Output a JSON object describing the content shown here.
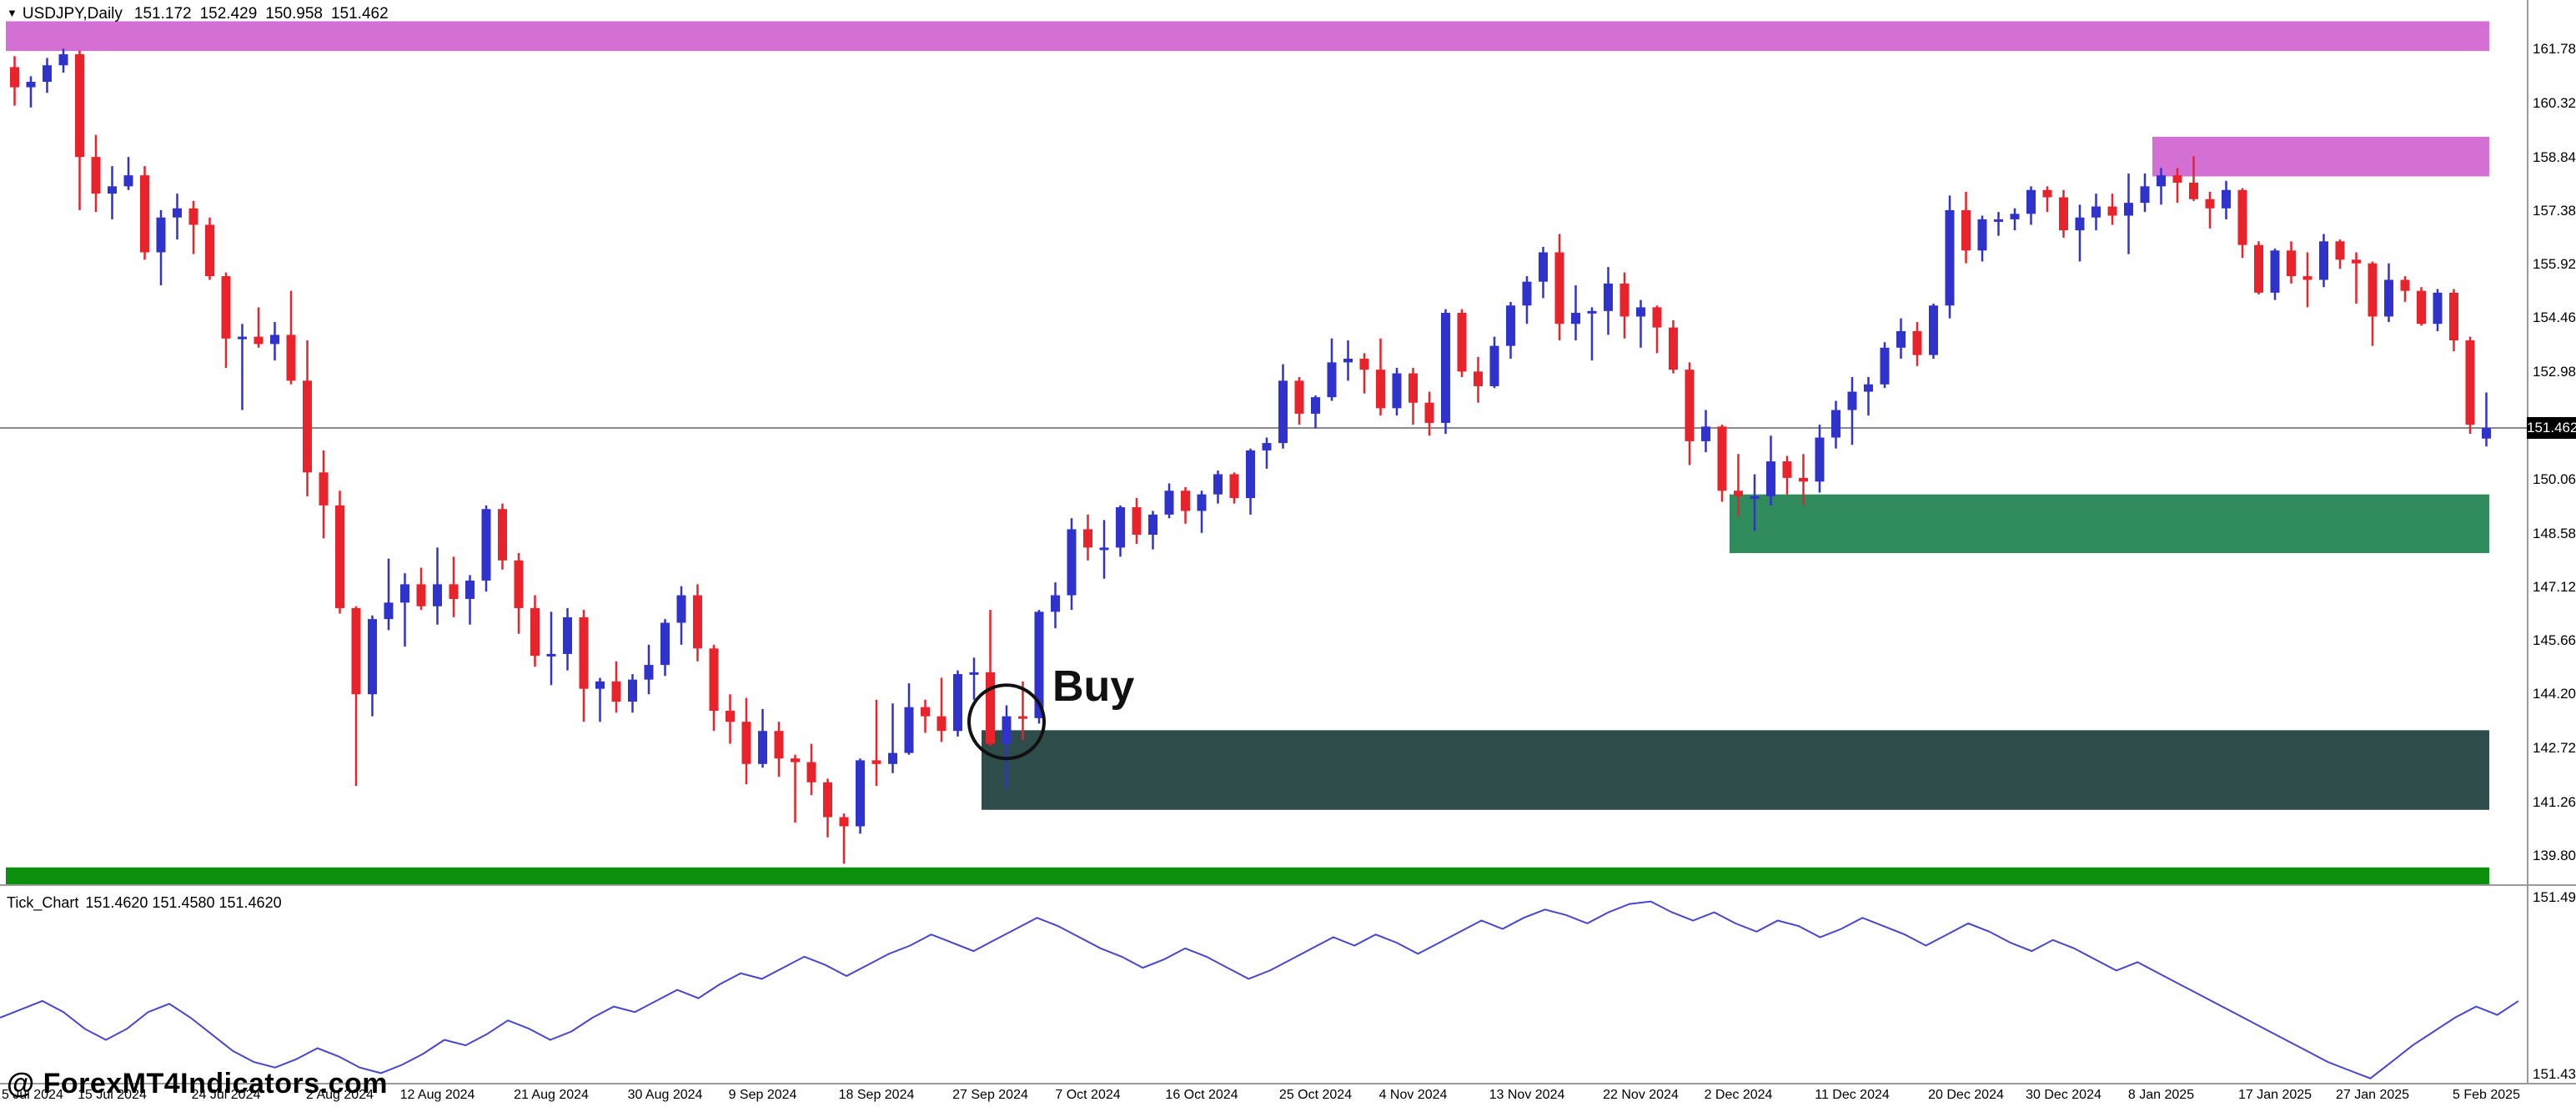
{
  "header": {
    "arrow": "▼",
    "instrument": "USDJPY,Daily",
    "open": "151.172",
    "high": "152.429",
    "low": "150.958",
    "close": "151.462"
  },
  "watermark": "@ ForexMT4Indicators.com",
  "price_axis": {
    "labels": [
      "161.780",
      "160.320",
      "158.840",
      "157.380",
      "155.920",
      "154.460",
      "152.980",
      "150.060",
      "148.580",
      "147.120",
      "145.660",
      "144.200",
      "142.720",
      "141.260",
      "139.800"
    ],
    "current_price": "151.462"
  },
  "indicator": {
    "name": "Tick_Chart",
    "values_line": "151.4620 151.4580 151.4620",
    "axis_top": "151.4979",
    "axis_bottom": "151.4341"
  },
  "time_axis": {
    "labels": [
      "5 Jul 2024",
      "15 Jul 2024",
      "24 Jul 2024",
      "2 Aug 2024",
      "12 Aug 2024",
      "21 Aug 2024",
      "30 Aug 2024",
      "9 Sep 2024",
      "18 Sep 2024",
      "27 Sep 2024",
      "7 Oct 2024",
      "16 Oct 2024",
      "25 Oct 2024",
      "4 Nov 2024",
      "13 Nov 2024",
      "22 Nov 2024",
      "2 Dec 2024",
      "11 Dec 2024",
      "20 Dec 2024",
      "30 Dec 2024",
      "8 Jan 2025",
      "17 Jan 2025",
      "27 Jan 2025",
      "5 Feb 2025"
    ],
    "indices": [
      0,
      6,
      13,
      20,
      26,
      33,
      40,
      46,
      53,
      60,
      66,
      73,
      80,
      86,
      93,
      100,
      106,
      113,
      120,
      126,
      132,
      139,
      145,
      152
    ]
  },
  "colors": {
    "bull": "#3032cc",
    "bear": "#e8232b",
    "zone_pink": "#d46fd4",
    "zone_green": "#318c5d",
    "zone_teal": "#2e4d4a",
    "zone_bright_green": "#0c8f0c",
    "indicator_line": "#4646cf",
    "price_line": "#8a8a8a",
    "annotation": "#111111"
  },
  "chart_data": [
    {
      "type": "candlestick",
      "title": "USDJPY Daily",
      "ylim": [
        139.02,
        163.13
      ],
      "current_price": 151.462,
      "annotation": {
        "text": "Buy",
        "candle_index": 61,
        "price": 143.45
      },
      "zones": [
        {
          "name": "supply-zone-upper",
          "color": "zone_pink",
          "top": 162.55,
          "bottom": 161.74,
          "start_index": 0
        },
        {
          "name": "supply-zone-right",
          "color": "zone_pink",
          "top": 159.4,
          "bottom": 158.32,
          "start_index": 132
        },
        {
          "name": "demand-zone-green",
          "color": "zone_green",
          "top": 149.65,
          "bottom": 148.05,
          "start_index": 106
        },
        {
          "name": "demand-zone-teal",
          "color": "zone_teal",
          "top": 143.22,
          "bottom": 141.05,
          "start_index": 60
        },
        {
          "name": "support-band-bottom",
          "color": "zone_bright_green",
          "top": 139.48,
          "bottom": 138.9,
          "start_index": 0
        }
      ],
      "ohlc": [
        [
          161.3,
          161.6,
          160.25,
          160.75
        ],
        [
          160.75,
          161.05,
          160.2,
          160.9
        ],
        [
          160.9,
          161.55,
          160.6,
          161.35
        ],
        [
          161.35,
          161.8,
          161.15,
          161.65
        ],
        [
          161.65,
          161.75,
          157.4,
          158.85
        ],
        [
          158.85,
          159.45,
          157.35,
          157.85
        ],
        [
          157.85,
          158.6,
          157.15,
          158.05
        ],
        [
          158.05,
          158.85,
          157.95,
          158.35
        ],
        [
          158.35,
          158.6,
          156.05,
          156.25
        ],
        [
          156.25,
          157.4,
          155.35,
          157.2
        ],
        [
          157.2,
          157.85,
          156.6,
          157.45
        ],
        [
          157.45,
          157.65,
          156.2,
          157.0
        ],
        [
          157.0,
          157.2,
          155.5,
          155.6
        ],
        [
          155.6,
          155.7,
          153.1,
          153.9
        ],
        [
          153.9,
          154.3,
          151.95,
          153.95
        ],
        [
          153.95,
          154.75,
          153.65,
          153.75
        ],
        [
          153.75,
          154.35,
          153.3,
          154.0
        ],
        [
          154.0,
          155.2,
          152.65,
          152.75
        ],
        [
          152.75,
          153.85,
          149.6,
          150.25
        ],
        [
          150.25,
          150.85,
          148.45,
          149.35
        ],
        [
          149.35,
          149.75,
          146.4,
          146.55
        ],
        [
          146.55,
          146.6,
          141.7,
          144.2
        ],
        [
          144.2,
          146.35,
          143.6,
          146.25
        ],
        [
          146.25,
          147.9,
          145.95,
          146.7
        ],
        [
          146.7,
          147.5,
          145.5,
          147.2
        ],
        [
          147.2,
          147.65,
          146.5,
          146.6
        ],
        [
          146.6,
          148.2,
          146.1,
          147.2
        ],
        [
          147.2,
          147.95,
          146.3,
          146.8
        ],
        [
          146.8,
          147.45,
          146.1,
          147.3
        ],
        [
          147.3,
          149.35,
          147.0,
          149.25
        ],
        [
          149.25,
          149.4,
          147.6,
          147.85
        ],
        [
          147.85,
          148.05,
          145.85,
          146.55
        ],
        [
          146.55,
          146.9,
          144.95,
          145.25
        ],
        [
          145.25,
          146.45,
          144.45,
          145.3
        ],
        [
          145.3,
          146.55,
          144.85,
          146.3
        ],
        [
          146.3,
          146.5,
          143.45,
          144.35
        ],
        [
          144.35,
          144.65,
          143.45,
          144.55
        ],
        [
          144.55,
          145.1,
          143.7,
          144.0
        ],
        [
          144.0,
          144.75,
          143.7,
          144.6
        ],
        [
          144.6,
          145.55,
          144.2,
          145.0
        ],
        [
          145.0,
          146.25,
          144.7,
          146.15
        ],
        [
          146.15,
          147.15,
          145.55,
          146.9
        ],
        [
          146.9,
          147.2,
          145.1,
          145.45
        ],
        [
          145.45,
          145.55,
          143.2,
          143.75
        ],
        [
          143.75,
          144.2,
          142.85,
          143.45
        ],
        [
          143.45,
          144.1,
          141.75,
          142.3
        ],
        [
          142.3,
          143.8,
          142.2,
          143.2
        ],
        [
          143.2,
          143.45,
          141.95,
          142.45
        ],
        [
          142.45,
          142.55,
          140.7,
          142.35
        ],
        [
          142.35,
          142.85,
          141.45,
          141.8
        ],
        [
          141.8,
          141.9,
          140.3,
          140.85
        ],
        [
          140.85,
          140.95,
          139.58,
          140.6
        ],
        [
          140.6,
          142.45,
          140.4,
          142.4
        ],
        [
          142.4,
          144.05,
          141.7,
          142.3
        ],
        [
          142.3,
          143.95,
          142.05,
          142.6
        ],
        [
          142.6,
          144.5,
          142.55,
          143.85
        ],
        [
          143.85,
          144.05,
          143.15,
          143.6
        ],
        [
          143.6,
          144.65,
          142.9,
          143.2
        ],
        [
          143.2,
          144.85,
          143.05,
          144.75
        ],
        [
          144.75,
          145.2,
          144.05,
          144.8
        ],
        [
          144.8,
          146.5,
          142.8,
          142.85
        ],
        [
          142.85,
          143.9,
          141.65,
          143.6
        ],
        [
          143.6,
          144.55,
          142.95,
          143.55
        ],
        [
          143.55,
          146.5,
          143.4,
          146.45
        ],
        [
          146.45,
          147.25,
          146.0,
          146.9
        ],
        [
          146.9,
          149.0,
          146.5,
          148.7
        ],
        [
          148.7,
          149.1,
          147.85,
          148.2
        ],
        [
          148.2,
          148.95,
          147.35,
          148.2
        ],
        [
          148.2,
          149.35,
          147.95,
          149.3
        ],
        [
          149.3,
          149.55,
          148.3,
          148.55
        ],
        [
          148.55,
          149.2,
          148.15,
          149.1
        ],
        [
          149.1,
          149.95,
          149.0,
          149.75
        ],
        [
          149.75,
          149.85,
          148.85,
          149.2
        ],
        [
          149.2,
          149.75,
          148.6,
          149.65
        ],
        [
          149.65,
          150.3,
          149.4,
          150.2
        ],
        [
          150.2,
          150.25,
          149.4,
          149.55
        ],
        [
          149.55,
          150.9,
          149.1,
          150.85
        ],
        [
          150.85,
          151.2,
          150.35,
          151.05
        ],
        [
          151.05,
          153.2,
          150.9,
          152.75
        ],
        [
          152.75,
          152.85,
          151.55,
          151.85
        ],
        [
          151.85,
          152.35,
          151.45,
          152.3
        ],
        [
          152.3,
          153.9,
          152.2,
          153.25
        ],
        [
          153.25,
          153.85,
          152.75,
          153.35
        ],
        [
          153.35,
          153.5,
          152.4,
          153.05
        ],
        [
          153.05,
          153.9,
          151.8,
          152.0
        ],
        [
          152.0,
          153.1,
          151.8,
          152.95
        ],
        [
          152.95,
          153.1,
          151.55,
          152.15
        ],
        [
          152.15,
          152.45,
          151.25,
          151.6
        ],
        [
          151.6,
          154.7,
          151.3,
          154.6
        ],
        [
          154.6,
          154.7,
          152.85,
          153.0
        ],
        [
          153.0,
          153.4,
          152.15,
          152.6
        ],
        [
          152.6,
          153.95,
          152.55,
          153.7
        ],
        [
          153.7,
          154.9,
          153.35,
          154.8
        ],
        [
          154.8,
          155.6,
          154.3,
          155.45
        ],
        [
          155.45,
          156.4,
          155.0,
          156.25
        ],
        [
          156.25,
          156.75,
          153.85,
          154.3
        ],
        [
          154.3,
          155.35,
          153.85,
          154.6
        ],
        [
          154.6,
          154.75,
          153.3,
          154.65
        ],
        [
          154.65,
          155.85,
          154.0,
          155.4
        ],
        [
          155.4,
          155.7,
          153.9,
          154.5
        ],
        [
          154.5,
          154.95,
          153.65,
          154.75
        ],
        [
          154.75,
          154.8,
          153.5,
          154.2
        ],
        [
          154.2,
          154.4,
          152.95,
          153.05
        ],
        [
          153.05,
          153.25,
          150.45,
          151.1
        ],
        [
          151.1,
          151.95,
          150.8,
          151.5
        ],
        [
          151.5,
          151.55,
          149.45,
          149.75
        ],
        [
          149.75,
          150.75,
          149.05,
          149.6
        ],
        [
          149.55,
          150.2,
          148.65,
          149.6
        ],
        [
          149.6,
          151.25,
          149.35,
          150.55
        ],
        [
          150.55,
          150.7,
          149.65,
          150.1
        ],
        [
          150.1,
          150.75,
          149.35,
          150.0
        ],
        [
          150.0,
          151.55,
          149.7,
          151.2
        ],
        [
          151.2,
          152.2,
          150.9,
          151.95
        ],
        [
          151.95,
          152.85,
          151.0,
          152.45
        ],
        [
          152.45,
          152.85,
          151.8,
          152.65
        ],
        [
          152.65,
          153.8,
          152.55,
          153.65
        ],
        [
          153.65,
          154.45,
          153.35,
          154.1
        ],
        [
          154.1,
          154.35,
          153.15,
          153.45
        ],
        [
          153.45,
          154.85,
          153.35,
          154.8
        ],
        [
          154.8,
          157.8,
          154.45,
          157.4
        ],
        [
          157.4,
          157.9,
          155.95,
          156.3
        ],
        [
          156.3,
          157.25,
          156.0,
          157.15
        ],
        [
          157.15,
          157.35,
          156.7,
          157.15
        ],
        [
          157.15,
          157.45,
          156.85,
          157.3
        ],
        [
          157.3,
          158.05,
          157.0,
          157.95
        ],
        [
          157.95,
          158.05,
          157.35,
          157.75
        ],
        [
          157.75,
          157.95,
          156.65,
          156.85
        ],
        [
          156.85,
          157.55,
          156.0,
          157.2
        ],
        [
          157.2,
          157.85,
          156.85,
          157.5
        ],
        [
          157.5,
          157.85,
          157.0,
          157.25
        ],
        [
          157.25,
          158.4,
          156.2,
          157.6
        ],
        [
          157.6,
          158.4,
          157.35,
          158.05
        ],
        [
          158.05,
          158.55,
          157.55,
          158.35
        ],
        [
          158.35,
          158.55,
          157.6,
          158.15
        ],
        [
          158.15,
          158.87,
          157.65,
          157.7
        ],
        [
          157.7,
          157.9,
          156.9,
          157.45
        ],
        [
          157.45,
          158.2,
          157.15,
          157.95
        ],
        [
          157.95,
          158.0,
          156.1,
          156.45
        ],
        [
          156.45,
          156.55,
          155.1,
          155.15
        ],
        [
          155.15,
          156.35,
          154.95,
          156.3
        ],
        [
          156.3,
          156.55,
          155.4,
          155.6
        ],
        [
          155.6,
          156.25,
          154.75,
          155.5
        ],
        [
          155.5,
          156.75,
          155.3,
          156.55
        ],
        [
          156.55,
          156.6,
          155.8,
          156.05
        ],
        [
          156.05,
          156.25,
          154.85,
          155.95
        ],
        [
          155.95,
          156.0,
          153.7,
          154.5
        ],
        [
          154.5,
          155.95,
          154.35,
          155.5
        ],
        [
          155.5,
          155.6,
          154.9,
          155.2
        ],
        [
          155.2,
          155.3,
          154.25,
          154.3
        ],
        [
          154.3,
          155.25,
          154.1,
          155.15
        ],
        [
          155.15,
          155.25,
          153.55,
          153.85
        ],
        [
          153.85,
          153.95,
          151.3,
          151.55
        ],
        [
          151.172,
          152.429,
          150.958,
          151.462
        ]
      ]
    },
    {
      "type": "line",
      "title": "Tick_Chart",
      "ylim": [
        151.4325,
        151.5035
      ],
      "values": [
        151.456,
        151.459,
        151.462,
        151.458,
        151.452,
        151.448,
        151.452,
        151.458,
        151.461,
        151.456,
        151.45,
        151.444,
        151.44,
        151.438,
        151.441,
        151.445,
        151.442,
        151.438,
        151.436,
        151.439,
        151.443,
        151.448,
        151.446,
        151.45,
        151.455,
        151.452,
        151.448,
        151.451,
        151.456,
        151.46,
        151.458,
        151.462,
        151.466,
        151.463,
        151.468,
        151.472,
        151.47,
        151.474,
        151.478,
        151.475,
        151.471,
        151.475,
        151.479,
        151.482,
        151.486,
        151.483,
        151.48,
        151.484,
        151.488,
        151.492,
        151.489,
        151.485,
        151.481,
        151.478,
        151.474,
        151.477,
        151.481,
        151.478,
        151.474,
        151.47,
        151.473,
        151.477,
        151.481,
        151.485,
        151.482,
        151.486,
        151.483,
        151.479,
        151.483,
        151.487,
        151.491,
        151.488,
        151.492,
        151.495,
        151.493,
        151.49,
        151.494,
        151.497,
        151.4979,
        151.494,
        151.491,
        151.494,
        151.49,
        151.487,
        151.491,
        151.489,
        151.485,
        151.488,
        151.492,
        151.489,
        151.486,
        151.482,
        151.486,
        151.49,
        151.487,
        151.483,
        151.48,
        151.484,
        151.481,
        151.477,
        151.473,
        151.476,
        151.472,
        151.468,
        151.464,
        151.46,
        151.456,
        151.452,
        151.448,
        151.444,
        151.44,
        151.437,
        151.4341,
        151.44,
        151.446,
        151.451,
        151.456,
        151.46,
        151.457,
        151.462
      ]
    }
  ]
}
